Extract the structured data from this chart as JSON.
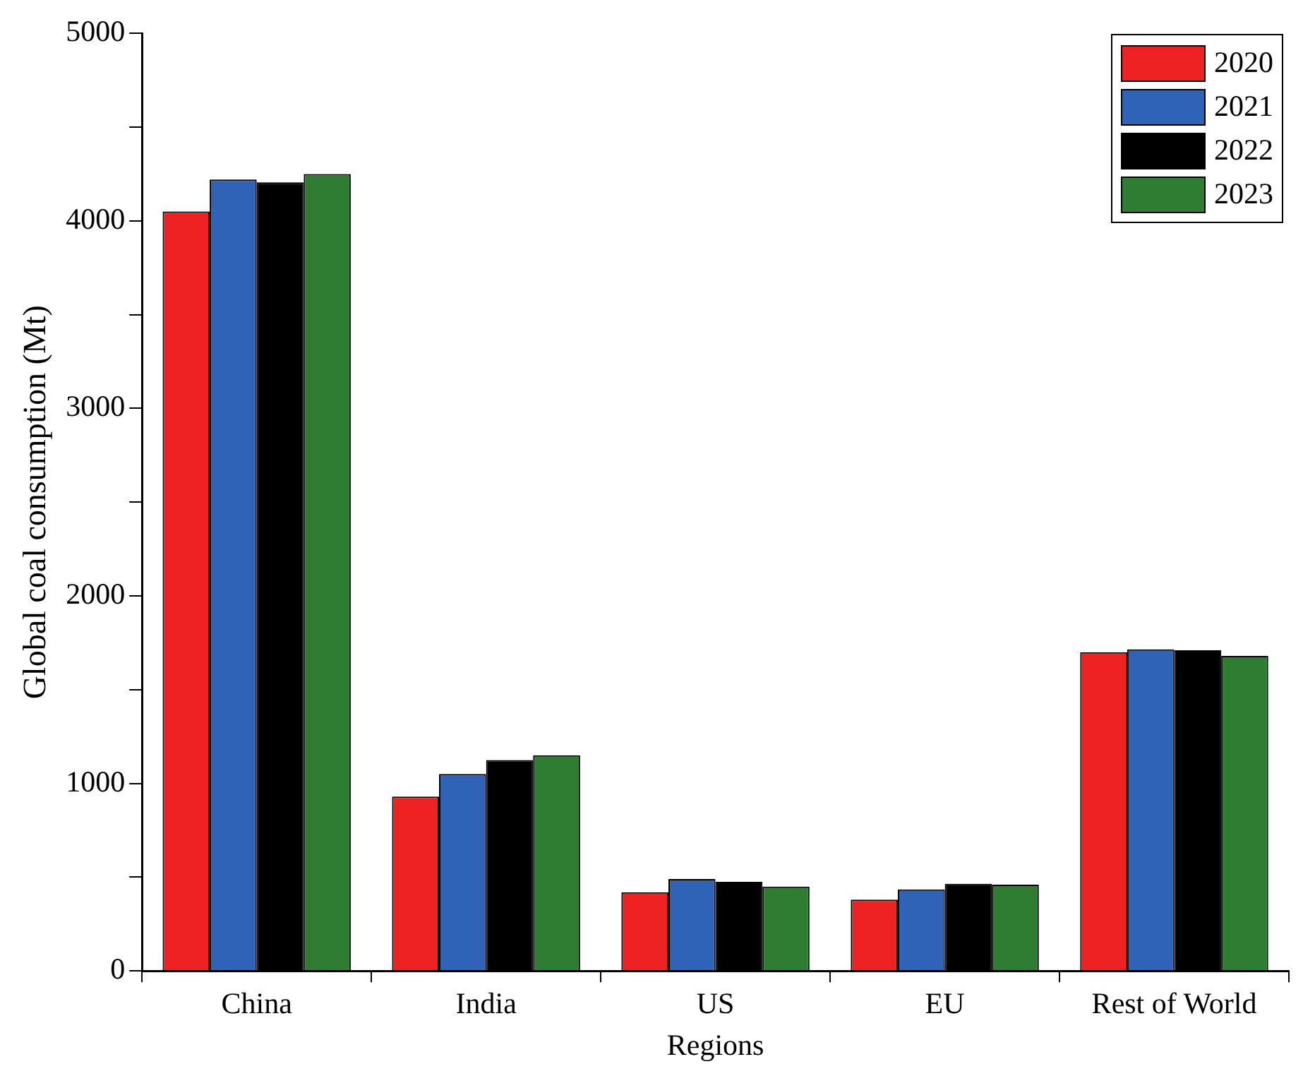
{
  "chart_data": {
    "type": "bar",
    "xlabel": "Regions",
    "ylabel": "Global coal consumption (Mt)",
    "categories": [
      "China",
      "India",
      "US",
      "EU",
      "Rest of World"
    ],
    "series": [
      {
        "name": "2020",
        "color": "#ee2222",
        "values": [
          4050,
          930,
          420,
          380,
          1700
        ]
      },
      {
        "name": "2021",
        "color": "#2f63b8",
        "values": [
          4220,
          1050,
          490,
          435,
          1715
        ]
      },
      {
        "name": "2022",
        "color": "#000000",
        "values": [
          4205,
          1125,
          475,
          465,
          1710
        ]
      },
      {
        "name": "2023",
        "color": "#2e7d32",
        "values": [
          4250,
          1150,
          450,
          460,
          1680
        ]
      }
    ],
    "ylim": [
      0,
      5000
    ],
    "yticks": [
      0,
      {
        "value": 500,
        "label": null
      },
      1000,
      {
        "value": 1500,
        "label": null
      },
      2000,
      {
        "value": 2500,
        "label": null
      },
      3000,
      {
        "value": 3500,
        "label": null
      },
      4000,
      {
        "value": 4500,
        "label": null
      },
      5000
    ],
    "grid": false,
    "legend": "top right"
  }
}
